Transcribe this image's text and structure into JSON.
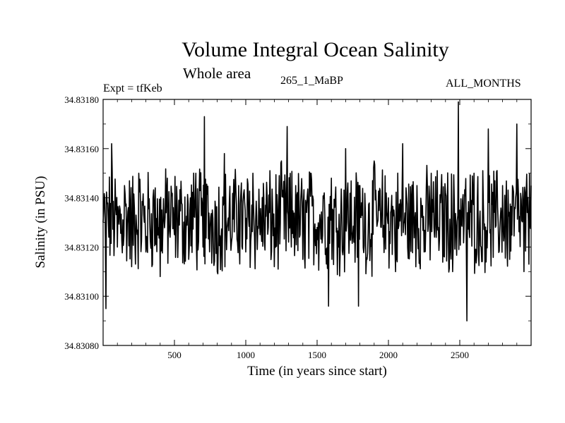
{
  "header": {
    "title": "Volume Integral Ocean Salinity",
    "subtitle": "Whole area",
    "expt": "Expt = tfKeb",
    "run": "265_1_MaBP",
    "months": "ALL_MONTHS"
  },
  "chart_data": {
    "type": "line",
    "title": "Volume Integral Ocean Salinity",
    "subtitle": "Whole area",
    "xlabel": "Time (in years since start)",
    "ylabel": "Salinity (in PSU)",
    "xlim": [
      0,
      3000
    ],
    "ylim": [
      34.8308,
      34.8318
    ],
    "x_ticks": [
      500,
      1000,
      1500,
      2000,
      2500
    ],
    "y_ticks": [
      "34.83080",
      "34.83100",
      "34.83120",
      "34.83140",
      "34.83160",
      "34.83180"
    ],
    "grid": false,
    "series": [
      {
        "x": [
          0,
          20,
          60,
          100,
          150,
          200,
          250,
          300,
          350,
          400,
          450,
          500,
          550,
          600,
          650,
          700,
          710,
          750,
          800,
          850,
          900,
          950,
          1000,
          1050,
          1100,
          1150,
          1200,
          1250,
          1290,
          1300,
          1350,
          1400,
          1450,
          1500,
          1550,
          1580,
          1600,
          1650,
          1700,
          1750,
          1790,
          1800,
          1850,
          1900,
          1950,
          2000,
          2050,
          2100,
          2150,
          2200,
          2250,
          2300,
          2350,
          2400,
          2450,
          2490,
          2500,
          2550,
          2600,
          2650,
          2700,
          2750,
          2800,
          2850,
          2900,
          2950,
          3000
        ],
        "y": [
          34.8313,
          34.83095,
          34.83162,
          34.8312,
          34.83145,
          34.83112,
          34.8315,
          34.83118,
          34.8314,
          34.83108,
          34.83148,
          34.83125,
          34.83138,
          34.83115,
          34.8315,
          34.8312,
          34.83173,
          34.83128,
          34.8311,
          34.83158,
          34.83122,
          34.83145,
          34.83118,
          34.8315,
          34.83125,
          34.8314,
          34.83112,
          34.83155,
          34.83169,
          34.83122,
          34.83145,
          34.83115,
          34.8315,
          34.83128,
          34.83142,
          34.83096,
          34.83148,
          34.8312,
          34.8316,
          34.83125,
          34.83096,
          34.83145,
          34.83115,
          34.83155,
          34.83128,
          34.8314,
          34.8311,
          34.83162,
          34.83125,
          34.83145,
          34.83118,
          34.8315,
          34.83128,
          34.83142,
          34.8311,
          34.83179,
          34.83135,
          34.8309,
          34.8315,
          34.8312,
          34.83168,
          34.83128,
          34.83145,
          34.83115,
          34.8317,
          34.8311,
          34.83145
        ]
      }
    ]
  }
}
